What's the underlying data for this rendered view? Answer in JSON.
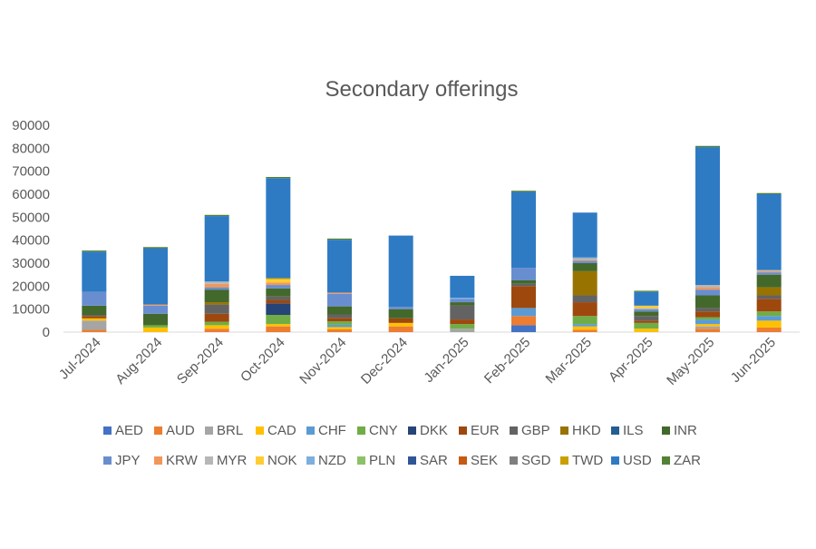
{
  "chart_data": {
    "type": "bar",
    "stacked": true,
    "title": "Secondary offerings",
    "xlabel": "",
    "ylabel": "",
    "ylim": [
      0,
      90000
    ],
    "yticks": [
      0,
      10000,
      20000,
      30000,
      40000,
      50000,
      60000,
      70000,
      80000,
      90000
    ],
    "ytick_labels": [
      "0",
      "10000",
      "20000",
      "30000",
      "40000",
      "50000",
      "60000",
      "70000",
      "80000",
      "90000"
    ],
    "grid": false,
    "legend_position": "bottom",
    "categories": [
      "Jul-2024",
      "Aug-2024",
      "Sep-2024",
      "Oct-2024",
      "Nov-2024",
      "Dec-2024",
      "Jan-2025",
      "Feb-2025",
      "Mar-2025",
      "Apr-2025",
      "May-2025",
      "Jun-2025"
    ],
    "series": [
      {
        "name": "AED",
        "color": "#4472C4",
        "values": [
          0,
          0,
          0,
          0,
          0,
          0,
          0,
          3000,
          0,
          0,
          0,
          0
        ]
      },
      {
        "name": "AUD",
        "color": "#ED7D31",
        "values": [
          1000,
          0,
          1500,
          2500,
          1200,
          2500,
          0,
          4000,
          1000,
          0,
          1500,
          2000
        ]
      },
      {
        "name": "BRL",
        "color": "#A5A5A5",
        "values": [
          4000,
          0,
          0,
          0,
          0,
          0,
          1500,
          0,
          0,
          0,
          1000,
          0
        ]
      },
      {
        "name": "CAD",
        "color": "#FFC000",
        "values": [
          1000,
          2000,
          1500,
          1000,
          1000,
          1500,
          0,
          0,
          1500,
          1500,
          1000,
          3000
        ]
      },
      {
        "name": "CHF",
        "color": "#5B9BD5",
        "values": [
          0,
          0,
          0,
          0,
          1000,
          0,
          0,
          3500,
          1000,
          0,
          2000,
          2000
        ]
      },
      {
        "name": "CNY",
        "color": "#70AD47",
        "values": [
          0,
          1000,
          1500,
          4000,
          1500,
          0,
          2000,
          0,
          3500,
          2500,
          1000,
          2000
        ]
      },
      {
        "name": "DKK",
        "color": "#264478",
        "values": [
          0,
          0,
          0,
          5000,
          0,
          0,
          0,
          0,
          0,
          0,
          0,
          0
        ]
      },
      {
        "name": "EUR",
        "color": "#9E480E",
        "values": [
          1000,
          0,
          3500,
          1500,
          1500,
          2000,
          2000,
          9500,
          6000,
          1000,
          2500,
          5500
        ]
      },
      {
        "name": "GBP",
        "color": "#636363",
        "values": [
          500,
          0,
          4000,
          1500,
          1500,
          0,
          6000,
          1000,
          3000,
          2000,
          1500,
          1500
        ]
      },
      {
        "name": "HKD",
        "color": "#997300",
        "values": [
          0,
          0,
          1000,
          0,
          0,
          0,
          0,
          0,
          10500,
          0,
          0,
          3500
        ]
      },
      {
        "name": "ILS",
        "color": "#255E91",
        "values": [
          0,
          0,
          0,
          0,
          0,
          0,
          0,
          0,
          0,
          0,
          0,
          0
        ]
      },
      {
        "name": "INR",
        "color": "#43682B",
        "values": [
          4000,
          5000,
          5500,
          3500,
          3500,
          4000,
          1500,
          1500,
          3500,
          2000,
          5500,
          5500
        ]
      },
      {
        "name": "JPY",
        "color": "#698ED0",
        "values": [
          6000,
          3500,
          1000,
          1500,
          5500,
          1000,
          1500,
          5500,
          1000,
          1000,
          2500,
          1000
        ]
      },
      {
        "name": "KRW",
        "color": "#F1975A",
        "values": [
          0,
          500,
          1500,
          1000,
          500,
          0,
          0,
          0,
          500,
          0,
          1000,
          500
        ]
      },
      {
        "name": "MYR",
        "color": "#B7B7B7",
        "values": [
          0,
          0,
          1000,
          0,
          0,
          0,
          0,
          0,
          500,
          500,
          1000,
          500
        ]
      },
      {
        "name": "NOK",
        "color": "#FFCD33",
        "values": [
          0,
          0,
          0,
          1500,
          0,
          0,
          0,
          0,
          0,
          1000,
          0,
          0
        ]
      },
      {
        "name": "NZD",
        "color": "#7CAFDD",
        "values": [
          0,
          0,
          0,
          0,
          0,
          0,
          500,
          0,
          500,
          0,
          0,
          0
        ]
      },
      {
        "name": "PLN",
        "color": "#8CC168",
        "values": [
          0,
          0,
          0,
          0,
          0,
          0,
          0,
          0,
          0,
          0,
          0,
          0
        ]
      },
      {
        "name": "SAR",
        "color": "#2F5597",
        "values": [
          0,
          0,
          0,
          0,
          0,
          0,
          0,
          0,
          0,
          0,
          0,
          0
        ]
      },
      {
        "name": "SEK",
        "color": "#C55A11",
        "values": [
          0,
          0,
          0,
          0,
          0,
          0,
          0,
          0,
          0,
          0,
          0,
          0
        ]
      },
      {
        "name": "SGD",
        "color": "#7F7F7F",
        "values": [
          0,
          0,
          0,
          0,
          0,
          0,
          0,
          0,
          0,
          0,
          0,
          0
        ]
      },
      {
        "name": "TWD",
        "color": "#C9A000",
        "values": [
          0,
          0,
          0,
          500,
          0,
          0,
          0,
          0,
          0,
          0,
          0,
          0
        ]
      },
      {
        "name": "USD",
        "color": "#2E7BC4",
        "values": [
          17500,
          24500,
          28500,
          43500,
          23000,
          31000,
          9500,
          33000,
          19500,
          6000,
          60000,
          33000
        ]
      },
      {
        "name": "ZAR",
        "color": "#548235",
        "values": [
          500,
          500,
          500,
          500,
          500,
          0,
          0,
          500,
          0,
          500,
          500,
          500
        ]
      }
    ]
  }
}
